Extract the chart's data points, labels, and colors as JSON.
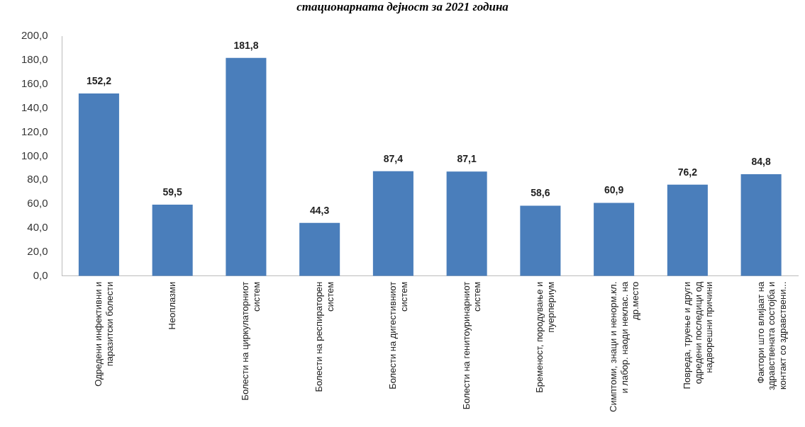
{
  "chart_data": {
    "type": "bar",
    "title": "стационарната дејност за 2021 година",
    "categories": [
      "Одредени инфективни и паразитски болести",
      "Неоплазми",
      "Болести на циркулаторниот систем",
      "Болести на респираторен систем",
      "Болести на дигестивниот систем",
      "Болести на генитоуринарниот систем",
      "Бременост, породување и пуерпериум",
      "Симптоми, знаци и ненорм.кл. и лабор. наоди неклас. на др.место",
      "Повреда, труење и други одредени последици од надворешни причини",
      "Фактори што влијаат на здравствената состојба и контакт со здравствени..."
    ],
    "values": [
      152.2,
      59.5,
      181.8,
      44.3,
      87.4,
      87.1,
      58.6,
      60.9,
      76.2,
      84.8
    ],
    "value_labels": [
      "152,2",
      "59,5",
      "181,8",
      "44,3",
      "87,4",
      "87,1",
      "58,6",
      "60,9",
      "76,2",
      "84,8"
    ],
    "color": "#4a7ebb",
    "ylim": [
      0,
      200
    ],
    "yticks": [
      {
        "value": 0,
        "label": "0,0"
      },
      {
        "value": 20,
        "label": "20,0"
      },
      {
        "value": 40,
        "label": "40,0"
      },
      {
        "value": 60,
        "label": "60,0"
      },
      {
        "value": 80,
        "label": "80,0"
      },
      {
        "value": 100,
        "label": "100,0"
      },
      {
        "value": 120,
        "label": "120,0"
      },
      {
        "value": 140,
        "label": "140,0"
      },
      {
        "value": 160,
        "label": "160,0"
      },
      {
        "value": 180,
        "label": "180,0"
      },
      {
        "value": 200,
        "label": "200,0"
      }
    ],
    "grid": false,
    "legend": false
  }
}
